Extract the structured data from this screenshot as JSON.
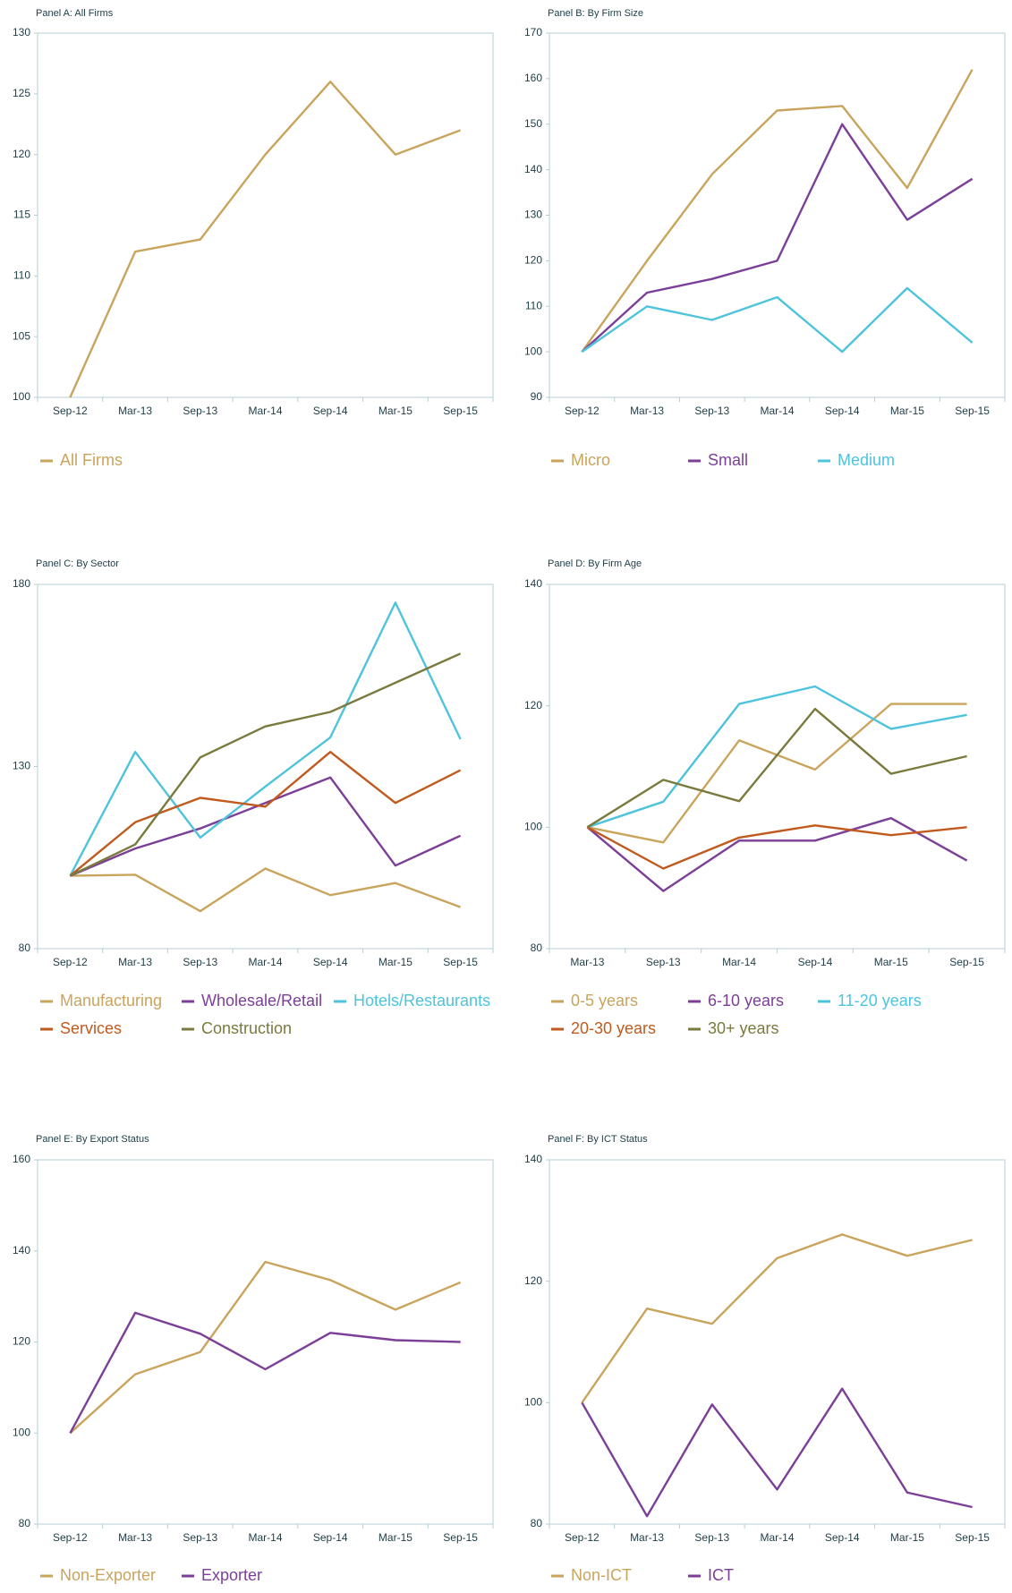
{
  "chart_data": [
    {
      "type": "line",
      "title": "Panel A: All Firms",
      "categories": [
        "Sep-12",
        "Mar-13",
        "Sep-13",
        "Mar-14",
        "Sep-14",
        "Mar-15",
        "Sep-15"
      ],
      "series": [
        {
          "name": "All Firms",
          "color": "#c9a45c",
          "values": [
            100,
            112,
            113,
            120,
            126,
            120,
            122
          ]
        }
      ],
      "ylim": [
        100,
        130
      ],
      "yticks": [
        100,
        105,
        110,
        115,
        120,
        125,
        130
      ]
    },
    {
      "type": "line",
      "title": "Panel B: By Firm Size",
      "categories": [
        "Sep-12",
        "Mar-13",
        "Sep-13",
        "Mar-14",
        "Sep-14",
        "Mar-15",
        "Sep-15"
      ],
      "series": [
        {
          "name": "Micro",
          "color": "#c9a45c",
          "values": [
            100,
            120,
            139,
            153,
            154,
            136,
            162
          ]
        },
        {
          "name": "Small",
          "color": "#7b3f98",
          "values": [
            100,
            113,
            116,
            120,
            150,
            129,
            138
          ]
        },
        {
          "name": "Medium",
          "color": "#4ec3dc",
          "values": [
            100,
            110,
            107,
            112,
            100,
            114,
            102
          ]
        }
      ],
      "ylim": [
        90,
        170
      ],
      "yticks": [
        90,
        100,
        110,
        120,
        130,
        140,
        150,
        160,
        170
      ]
    },
    {
      "type": "line",
      "title": "Panel C: By Sector",
      "categories": [
        "Sep-12",
        "Mar-13",
        "Sep-13",
        "Mar-14",
        "Sep-14",
        "Mar-15",
        "Sep-15"
      ],
      "series": [
        {
          "name": "Manufacturing",
          "color": "#c9a45c",
          "values": [
            100,
            100.3,
            90.3,
            102,
            94.7,
            98,
            91.4
          ]
        },
        {
          "name": "Wholesale/Retail",
          "color": "#7b3f98",
          "values": [
            100,
            107.5,
            113,
            120,
            127,
            102.8,
            111
          ]
        },
        {
          "name": "Hotels/Restaurants",
          "color": "#4ec3dc",
          "values": [
            100,
            134,
            110.5,
            124.5,
            138,
            175,
            137.5
          ]
        },
        {
          "name": "Services",
          "color": "#c05a1e",
          "values": [
            100,
            114.7,
            121.4,
            119,
            134,
            120,
            129
          ]
        },
        {
          "name": "Construction",
          "color": "#7a7a3e",
          "values": [
            100,
            108.6,
            132.5,
            141,
            145,
            153,
            161
          ]
        }
      ],
      "ylim": [
        80,
        180
      ],
      "yticks": [
        80,
        130,
        180
      ]
    },
    {
      "type": "line",
      "title": "Panel D: By Firm Age",
      "categories": [
        "Mar-13",
        "Sep-13",
        "Mar-14",
        "Sep-14",
        "Mar-15",
        "Sep-15"
      ],
      "series": [
        {
          "name": "0-5 years",
          "color": "#c9a45c",
          "values": [
            100,
            97.5,
            114.3,
            109.5,
            120.3,
            120.3
          ]
        },
        {
          "name": "6-10 years",
          "color": "#7b3f98",
          "values": [
            100,
            89.5,
            97.8,
            97.8,
            101.5,
            94.5
          ]
        },
        {
          "name": "11-20 years",
          "color": "#4ec3dc",
          "values": [
            100,
            104.2,
            120.3,
            123.2,
            116.2,
            118.5
          ]
        },
        {
          "name": "20-30 years",
          "color": "#c05a1e",
          "values": [
            100,
            93.2,
            98.3,
            100.3,
            98.7,
            100
          ]
        },
        {
          "name": "30+ years",
          "color": "#7a7a3e",
          "values": [
            100,
            107.8,
            104.3,
            119.5,
            108.8,
            111.7
          ]
        }
      ],
      "ylim": [
        80,
        140
      ],
      "yticks": [
        80,
        100,
        120,
        140
      ]
    },
    {
      "type": "line",
      "title": "Panel E: By Export Status",
      "categories": [
        "Sep-12",
        "Mar-13",
        "Sep-13",
        "Mar-14",
        "Sep-14",
        "Mar-15",
        "Sep-15"
      ],
      "series": [
        {
          "name": "Non-Exporter",
          "color": "#c9a45c",
          "values": [
            100,
            112.9,
            117.8,
            137.6,
            133.6,
            127.1,
            133.1
          ]
        },
        {
          "name": "Exporter",
          "color": "#7b3f98",
          "values": [
            100,
            126.4,
            121.8,
            114,
            122,
            120.4,
            120
          ]
        }
      ],
      "ylim": [
        80,
        160
      ],
      "yticks": [
        80,
        100,
        120,
        140,
        160
      ]
    },
    {
      "type": "line",
      "title": "Panel F: By ICT Status",
      "categories": [
        "Sep-12",
        "Mar-13",
        "Sep-13",
        "Mar-14",
        "Sep-14",
        "Mar-15",
        "Sep-15"
      ],
      "series": [
        {
          "name": "Non-ICT",
          "color": "#c9a45c",
          "values": [
            100,
            115.5,
            113,
            123.8,
            127.7,
            124.2,
            126.8
          ]
        },
        {
          "name": "ICT",
          "color": "#7b3f98",
          "values": [
            100,
            81.3,
            99.7,
            85.7,
            102.3,
            85.2,
            82.8
          ]
        }
      ],
      "ylim": [
        80,
        140
      ],
      "yticks": [
        80,
        100,
        120,
        140
      ]
    }
  ]
}
